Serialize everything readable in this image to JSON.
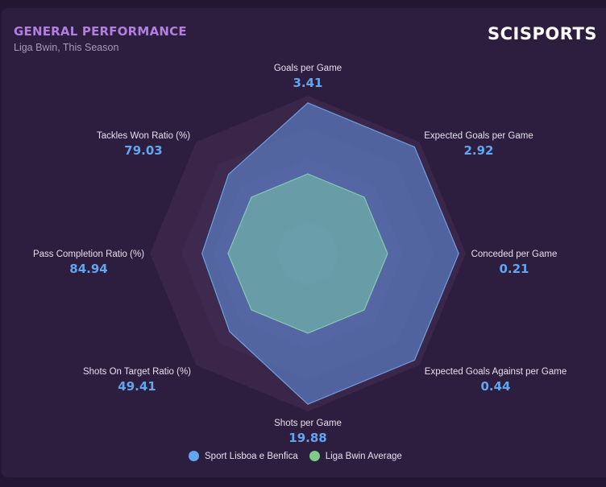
{
  "header": {
    "title": "GENERAL PERFORMANCE",
    "subtitle": "Liga Bwin, This Season",
    "logo": "SCISPORTS"
  },
  "colors": {
    "team": "#62a6ee",
    "average": "#7ecb8a",
    "title": "#b27fe0"
  },
  "chart_data": {
    "type": "radar",
    "title": "GENERAL PERFORMANCE",
    "subtitle": "Liga Bwin, This Season",
    "axes": [
      {
        "name": "Goals per Game",
        "value": "3.41"
      },
      {
        "name": "Expected Goals per Game",
        "value": "2.92"
      },
      {
        "name": "Conceded per Game",
        "value": "0.21"
      },
      {
        "name": "Expected Goals Against per Game",
        "value": "0.44"
      },
      {
        "name": "Shots per Game",
        "value": "19.88"
      },
      {
        "name": "Shots On Target Ratio (%)",
        "value": "49.41"
      },
      {
        "name": "Pass Completion Ratio (%)",
        "value": "84.94"
      },
      {
        "name": "Tackles Won Ratio (%)",
        "value": "79.03"
      }
    ],
    "scale_max": 1.0,
    "grid_levels": 5,
    "series": [
      {
        "name": "Sport Lisboa e Benfica",
        "values": [
          0.955,
          0.955,
          0.955,
          0.955,
          0.955,
          0.7,
          0.67,
          0.71
        ]
      },
      {
        "name": "Liga Bwin Average",
        "values": [
          0.505,
          0.505,
          0.505,
          0.505,
          0.505,
          0.505,
          0.505,
          0.505
        ]
      }
    ],
    "legend": [
      "Sport Lisboa e Benfica",
      "Liga Bwin Average"
    ],
    "legend_position": "bottom"
  }
}
